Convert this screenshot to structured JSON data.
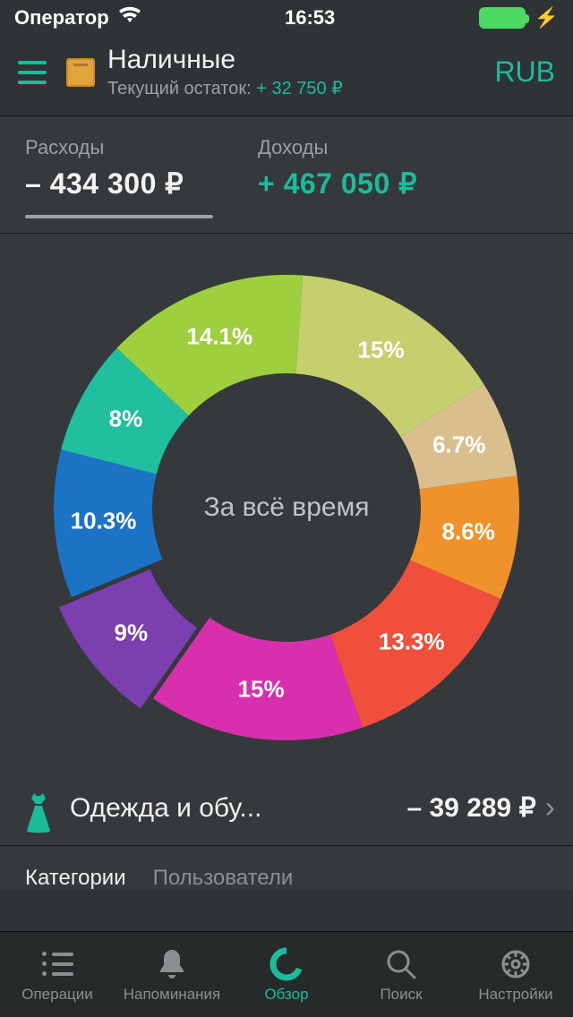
{
  "status_bar": {
    "carrier": "Оператор",
    "time": "16:53"
  },
  "header": {
    "title": "Наличные",
    "subtitle_label": "Текущий остаток: ",
    "subtitle_value": "+ 32 750 ₽",
    "currency": "RUB"
  },
  "money_tabs": {
    "expense_label": "Расходы",
    "expense_value": "– 434 300 ₽",
    "income_label": "Доходы",
    "income_value": "+ 467 050 ₽",
    "active": "expense"
  },
  "donut": {
    "type": "donut",
    "center_label": "За всё время",
    "outer_radius": 260,
    "inner_radius": 150,
    "pull_out": 18,
    "label_radius": 205,
    "label_fontsize": 26,
    "label_color": "#ffffff",
    "background": "#35393b",
    "slices": [
      {
        "pct": 15.0,
        "label": "15%",
        "color": "#c6cf6e"
      },
      {
        "pct": 6.7,
        "label": "6.7%",
        "color": "#d9bf8e"
      },
      {
        "pct": 8.6,
        "label": "8.6%",
        "color": "#f0922c"
      },
      {
        "pct": 13.3,
        "label": "13.3%",
        "color": "#ef4f3b"
      },
      {
        "pct": 15.0,
        "label": "15%",
        "color": "#d82fae"
      },
      {
        "pct": 9.0,
        "label": "9%",
        "color": "#7b3fb0",
        "pulled": true
      },
      {
        "pct": 10.3,
        "label": "10.3%",
        "color": "#1b73c5"
      },
      {
        "pct": 8.0,
        "label": "8%",
        "color": "#20bfa0"
      },
      {
        "pct": 14.1,
        "label": "14.1%",
        "color": "#9ecf3e"
      }
    ],
    "start_angle_deg": -86
  },
  "category_row": {
    "icon_color": "#1bbc9c",
    "name": "Одежда и обу...",
    "amount": "– 39 289 ₽"
  },
  "subtabs": {
    "items": [
      "Категории",
      "Пользователи"
    ],
    "active_index": 0
  },
  "nav": {
    "items": [
      {
        "label": "Операции",
        "icon": "list"
      },
      {
        "label": "Напоминания",
        "icon": "bell"
      },
      {
        "label": "Обзор",
        "icon": "donut"
      },
      {
        "label": "Поиск",
        "icon": "search"
      },
      {
        "label": "Настройки",
        "icon": "gear"
      }
    ],
    "active_index": 2,
    "active_color": "#1bbc9c",
    "inactive_color": "#8c8f91"
  },
  "colors": {
    "bg": "#303335",
    "panel": "#35393b",
    "accent": "#1bbc9c",
    "text": "#f2f2f2",
    "muted": "#9aa0a4"
  }
}
